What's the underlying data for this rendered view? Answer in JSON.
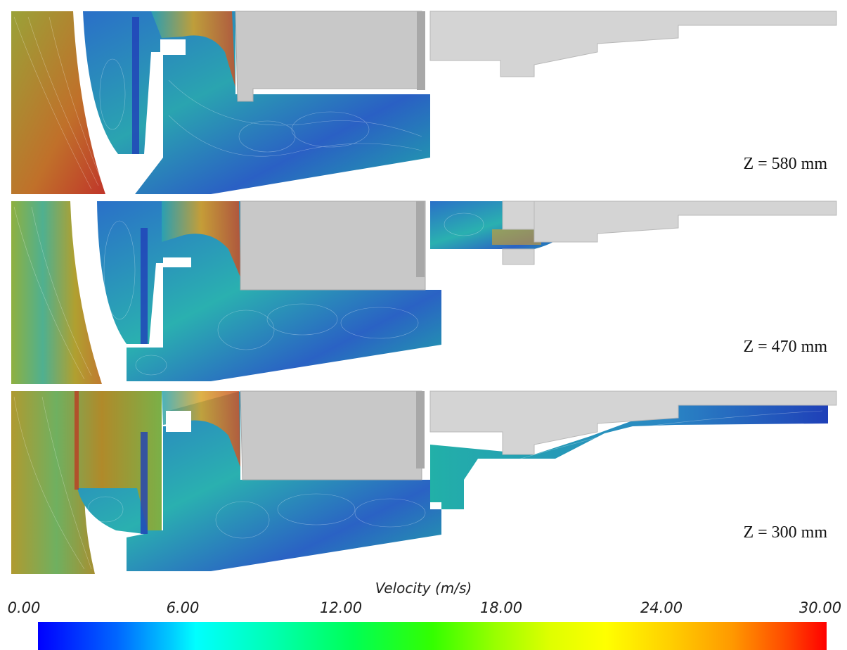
{
  "panels": [
    {
      "label": "Z = 580 mm"
    },
    {
      "label": "Z = 470 mm"
    },
    {
      "label": "Z = 300 mm"
    }
  ],
  "legend": {
    "title": "Velocity (m/s)",
    "ticks": [
      "0.00",
      "6.00",
      "12.00",
      "18.00",
      "24.00",
      "30.00"
    ],
    "min": 0,
    "max": 30,
    "colormap": [
      "#0000ff",
      "#00ffff",
      "#33ff00",
      "#ffff00",
      "#ff9900",
      "#ff0000"
    ]
  },
  "colors": {
    "solid_gray": "#c8c8c8",
    "flow_low": "#2a5fd0",
    "flow_mid": "#1fb0a8",
    "flow_high": "#d6a020"
  }
}
